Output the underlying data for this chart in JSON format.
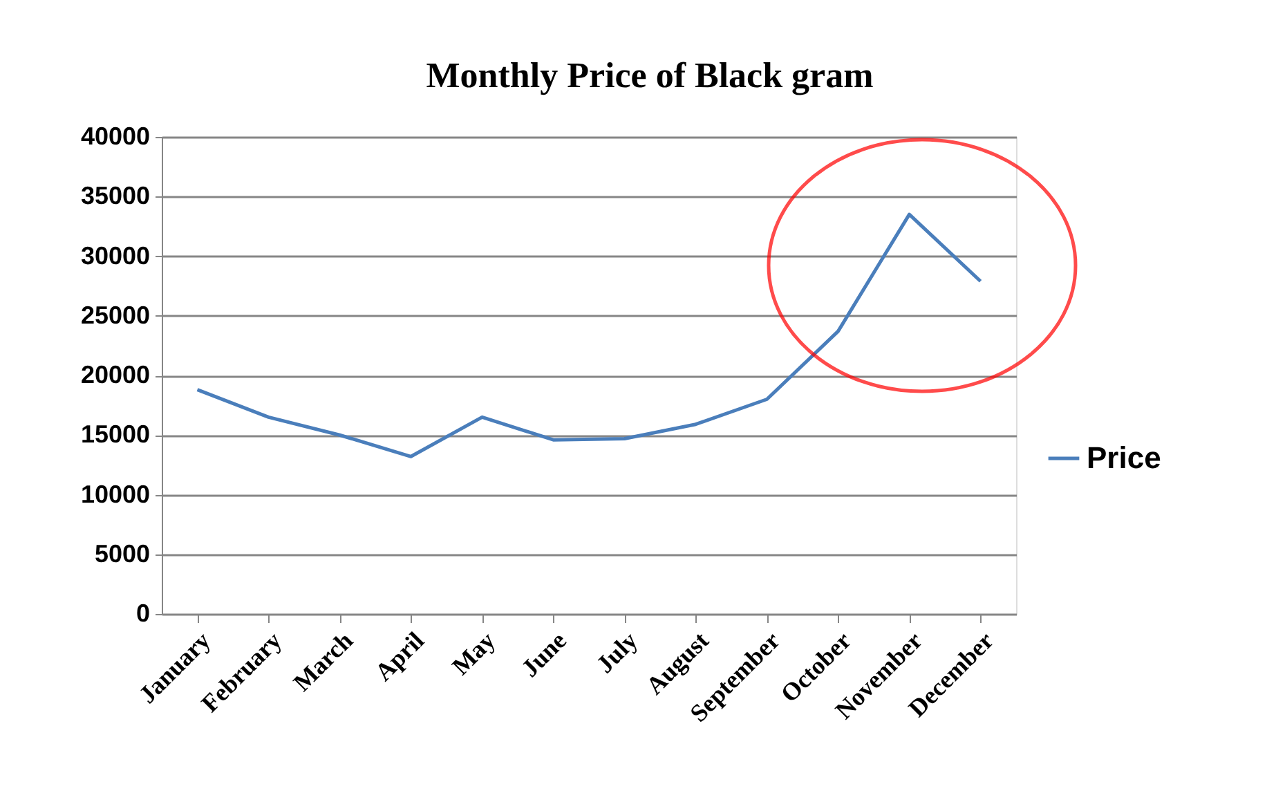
{
  "chart_data": {
    "type": "line",
    "title": "Monthly Price of Black gram",
    "categories": [
      "January",
      "February",
      "March",
      "April",
      "May",
      "June",
      "July",
      "August",
      "September",
      "October",
      "November",
      "December"
    ],
    "series": [
      {
        "name": "Price",
        "color": "#4a7ebb",
        "values": [
          18800,
          16500,
          15000,
          13200,
          16500,
          14600,
          14700,
          15900,
          18000,
          23700,
          33500,
          27900
        ]
      }
    ],
    "ylim": [
      0,
      40000
    ],
    "yticks": [
      0,
      5000,
      10000,
      15000,
      20000,
      25000,
      30000,
      35000,
      40000
    ],
    "grid": "y",
    "legend": "right",
    "marker": "none",
    "line_style": "solid"
  }
}
